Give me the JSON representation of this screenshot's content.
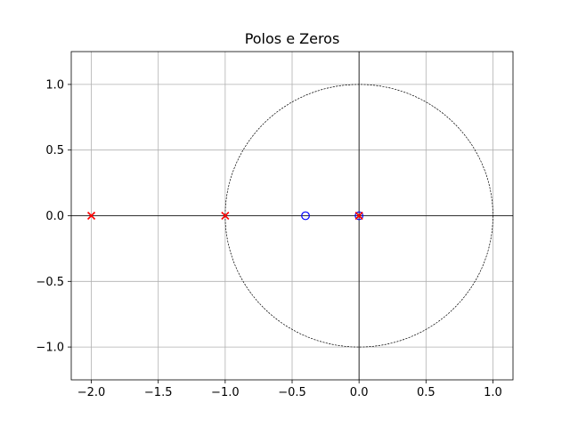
{
  "chart_data": {
    "type": "scatter",
    "title": "Polos e Zeros",
    "xlabel": "",
    "ylabel": "",
    "xlim": [
      -2.15,
      1.15
    ],
    "ylim": [
      -1.25,
      1.25
    ],
    "grid": true,
    "x_ticks": [
      -2.0,
      -1.5,
      -1.0,
      -0.5,
      0.0,
      0.5,
      1.0
    ],
    "x_tick_labels": [
      "−2.0",
      "−1.5",
      "−1.0",
      "−0.5",
      "0.0",
      "0.5",
      "1.0"
    ],
    "y_ticks": [
      1.0,
      0.5,
      0.0,
      -0.5,
      -1.0
    ],
    "y_tick_labels": [
      "1.0",
      "0.5",
      "0.0",
      "−0.5",
      "−1.0"
    ],
    "unit_circle": {
      "radius": 1,
      "center": [
        0,
        0
      ],
      "style": "dashed",
      "color": "#000000"
    },
    "series": [
      {
        "marker": "o",
        "color": "#0000ff",
        "points": [
          [
            -0.4,
            0.0
          ],
          [
            0.0,
            0.0
          ]
        ]
      },
      {
        "marker": "x",
        "color": "#ff0000",
        "points": [
          [
            -2.0,
            0.0
          ],
          [
            -1.0,
            0.0
          ],
          [
            0.0,
            0.0
          ]
        ]
      }
    ]
  }
}
